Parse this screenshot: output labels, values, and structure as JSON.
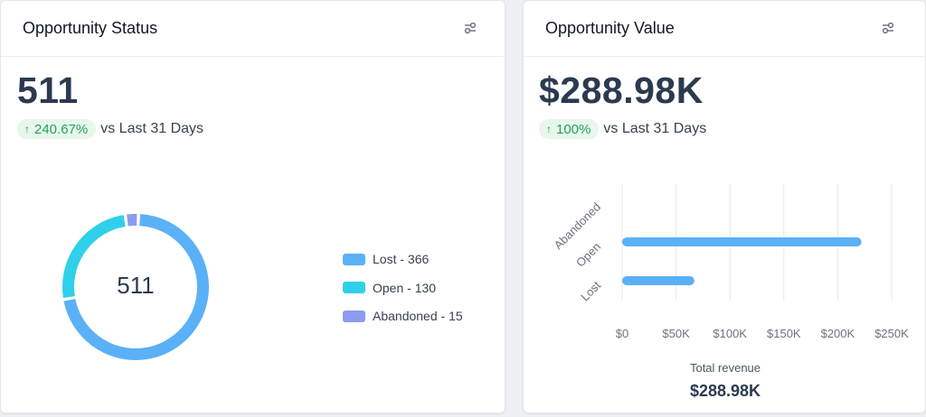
{
  "status_card": {
    "title": "Opportunity Status",
    "filter_icon": "sliders-icon",
    "total": "511",
    "delta": "240.67%",
    "delta_icon": "arrow-up-icon",
    "comparison": "vs Last 31 Days",
    "donut_center": "511",
    "legend": [
      {
        "label": "Lost - 366",
        "color": "#5ab1f7"
      },
      {
        "label": "Open - 130",
        "color": "#2fd0ea"
      },
      {
        "label": "Abandoned - 15",
        "color": "#8b9cf0"
      }
    ]
  },
  "value_card": {
    "title": "Opportunity Value",
    "filter_icon": "sliders-icon",
    "total": "$288.98K",
    "delta": "100%",
    "delta_icon": "arrow-up-icon",
    "comparison": "vs Last 31 Days",
    "total_label": "Total revenue",
    "total_value": "$288.98K"
  },
  "chart_data": [
    {
      "type": "pie",
      "categories": [
        "Lost",
        "Open",
        "Abandoned"
      ],
      "values": [
        366,
        130,
        15
      ],
      "colors": [
        "#5ab1f7",
        "#2fd0ea",
        "#8b9cf0"
      ],
      "center_label": "511",
      "legend_position": "right"
    },
    {
      "type": "bar",
      "orientation": "horizontal",
      "categories": [
        "Abandoned",
        "Open",
        "Lost"
      ],
      "values": [
        0,
        222000,
        67000
      ],
      "xlim": [
        0,
        250000
      ],
      "x_ticks": [
        "$0",
        "$50K",
        "$100K",
        "$150K",
        "$200K",
        "$250K"
      ],
      "color": "#5ab1f7",
      "grid": true
    }
  ]
}
